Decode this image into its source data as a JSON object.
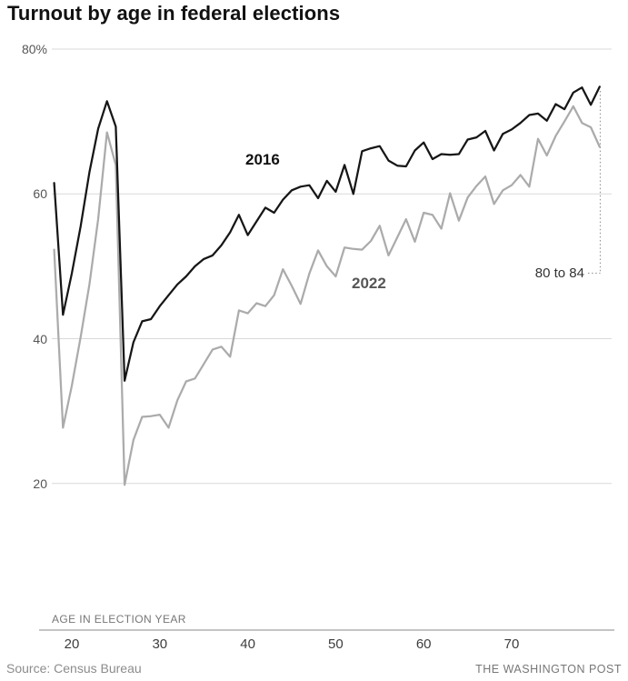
{
  "title": "Turnout by age in federal elections",
  "source": "Source: Census Bureau",
  "brand": "THE WASHINGTON POST",
  "annotation_label": "80 to 84",
  "colors": {
    "series_2016": "#161616",
    "series_2022": "#ababab",
    "label_2016": "#111111",
    "label_2022": "#565656",
    "gridline": "#d9d9d9",
    "axis_line": "#8a8a8a",
    "dotted_callout": "#9a9a9a"
  },
  "chart_data": {
    "type": "line",
    "title": "Turnout by age in federal elections",
    "xlabel": "AGE IN ELECTION YEAR",
    "ylabel": "",
    "grid": true,
    "xlim": [
      18,
      80
    ],
    "ylim": [
      20,
      80
    ],
    "y_ticks": [
      80,
      60,
      40,
      20
    ],
    "y_tick_labels": [
      "80%",
      "60",
      "40",
      "20"
    ],
    "x_ticks": [
      20,
      30,
      40,
      50,
      60,
      70
    ],
    "x_tick_labels": [
      "20",
      "30",
      "40",
      "50",
      "60",
      "70"
    ],
    "annotation": {
      "text": "80 to 84",
      "at_age": 80
    },
    "ages": [
      18,
      19,
      20,
      21,
      22,
      23,
      24,
      25,
      26,
      27,
      28,
      29,
      30,
      31,
      32,
      33,
      34,
      35,
      36,
      37,
      38,
      39,
      40,
      41,
      42,
      43,
      44,
      45,
      46,
      47,
      48,
      49,
      50,
      51,
      52,
      53,
      54,
      55,
      56,
      57,
      58,
      59,
      60,
      61,
      62,
      63,
      64,
      65,
      66,
      67,
      68,
      69,
      70,
      71,
      72,
      73,
      74,
      75,
      76,
      77,
      78,
      79,
      80
    ],
    "series": [
      {
        "name": "2016",
        "values": [
          61.5,
          43.3,
          49.0,
          55.5,
          63.0,
          69.0,
          72.8,
          69.3,
          34.2,
          39.5,
          42.4,
          42.7,
          44.5,
          46.0,
          47.5,
          48.6,
          50.0,
          51.0,
          51.5,
          52.9,
          54.7,
          57.1,
          54.3,
          56.2,
          58.1,
          57.4,
          59.2,
          60.5,
          61.0,
          61.2,
          59.4,
          61.8,
          60.3,
          64.0,
          60.0,
          65.9,
          66.3,
          66.6,
          64.6,
          63.9,
          63.8,
          66.0,
          67.1,
          64.8,
          65.5,
          65.4,
          65.5,
          67.5,
          67.8,
          68.7,
          66.0,
          68.3,
          68.9,
          69.8,
          70.9,
          71.1,
          70.1,
          72.4,
          71.7,
          74.0,
          74.7,
          72.3,
          74.8
        ]
      },
      {
        "name": "2022",
        "values": [
          52.3,
          27.7,
          33.5,
          40.2,
          47.5,
          56.5,
          68.5,
          64.0,
          19.8,
          26.0,
          29.2,
          29.3,
          29.5,
          27.7,
          31.5,
          34.1,
          34.5,
          36.5,
          38.5,
          38.9,
          37.5,
          43.9,
          43.5,
          44.9,
          44.5,
          46.0,
          49.6,
          47.3,
          44.8,
          49.0,
          52.2,
          50.0,
          48.6,
          52.6,
          52.4,
          52.3,
          53.5,
          55.6,
          51.5,
          54.0,
          56.5,
          53.4,
          57.4,
          57.1,
          55.2,
          60.1,
          56.3,
          59.5,
          61.1,
          62.4,
          58.6,
          60.5,
          61.2,
          62.6,
          61.0,
          67.6,
          65.3,
          68.0,
          70.0,
          72.1,
          69.8,
          69.2,
          66.5
        ]
      }
    ]
  }
}
